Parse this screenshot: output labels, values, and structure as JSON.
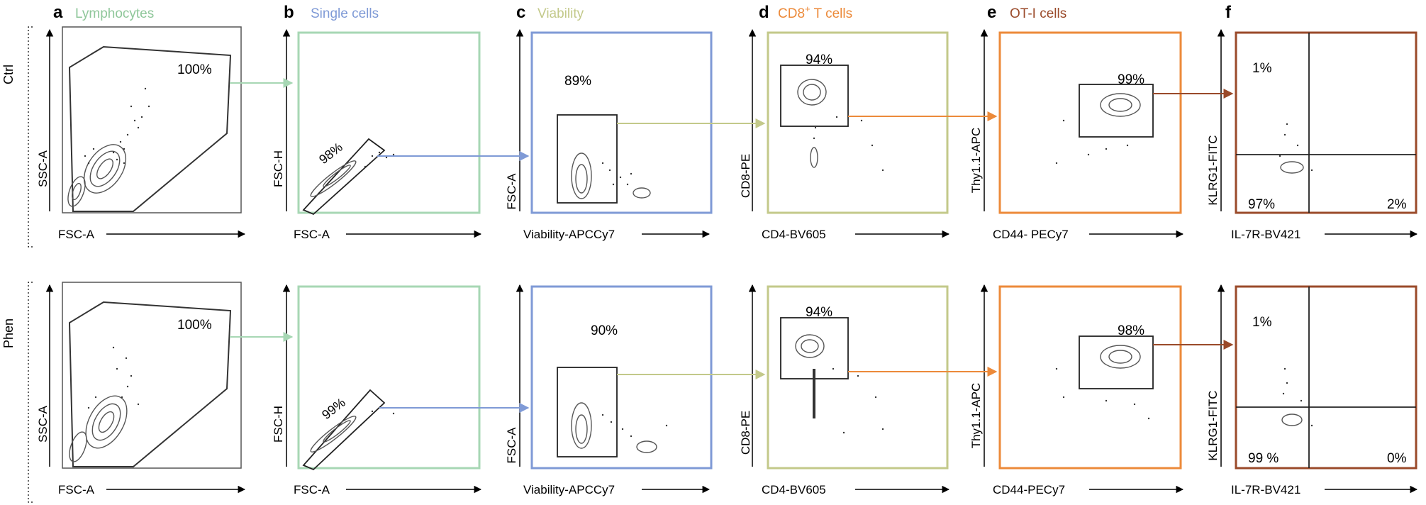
{
  "panels": [
    {
      "letter": "a",
      "title": "Lymphocytes",
      "title_color": "#8fc79a",
      "frame_color": "#555555",
      "x_label": "FSC-A",
      "y_label": "SSC-A",
      "gates": [
        {
          "row": "Ctrl",
          "label": "100%"
        },
        {
          "row": "Phen",
          "label": "100%"
        }
      ]
    },
    {
      "letter": "b",
      "title": "Single cells",
      "title_color": "#7f9ad6",
      "frame_color": "#a7d7b4",
      "x_label": "FSC-A",
      "y_label": "FSC-H",
      "gates": [
        {
          "row": "Ctrl",
          "label": "98%"
        },
        {
          "row": "Phen",
          "label": "99%"
        }
      ]
    },
    {
      "letter": "c",
      "title": "Viability",
      "title_color": "#c3c98a",
      "frame_color": "#7f9ad6",
      "x_label": "Viability-APCCy7",
      "y_label": "FSC-A",
      "gates": [
        {
          "row": "Ctrl",
          "label": "89%"
        },
        {
          "row": "Phen",
          "label": "90%"
        }
      ]
    },
    {
      "letter": "d",
      "title_pre": "CD8",
      "title_sup": "+",
      "title_post": " T cells",
      "title_color": "#ec8a3a",
      "frame_color": "#c3c98a",
      "x_label": "CD4-BV605",
      "y_label": "CD8-PE",
      "gates": [
        {
          "row": "Ctrl",
          "label": "94%"
        },
        {
          "row": "Phen",
          "label": "94%"
        }
      ]
    },
    {
      "letter": "e",
      "title": "OT-I cells",
      "title_color": "#9a4a2a",
      "frame_color": "#ec8a3a",
      "x_labels": [
        "CD44- PECy7",
        "CD44-PECy7"
      ],
      "y_label": "Thy1.1-APC",
      "gates": [
        {
          "row": "Ctrl",
          "label": "99%"
        },
        {
          "row": "Phen",
          "label": "98%"
        }
      ]
    },
    {
      "letter": "f",
      "title": "",
      "frame_color": "#9a4a2a",
      "x_label": "IL-7R-BV421",
      "y_label": "KLRG1-FITC",
      "quadrants": [
        {
          "row": "Ctrl",
          "upper_left": "1%",
          "lower_left": "97%",
          "lower_right": "2%"
        },
        {
          "row": "Phen",
          "upper_left": "1%",
          "lower_left": "99 %",
          "lower_right": "0%"
        }
      ]
    }
  ],
  "rows": [
    "Ctrl",
    "Phen"
  ],
  "colors": {
    "axis": "#000000",
    "gate": "#222222",
    "contour": "#555555",
    "dots": "#333333"
  }
}
